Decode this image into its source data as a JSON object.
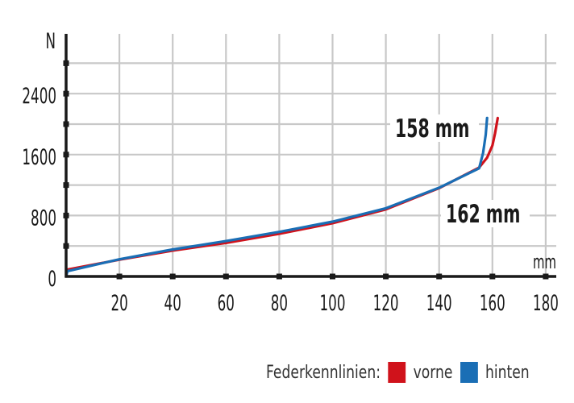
{
  "chart_data": {
    "type": "line",
    "title": "",
    "xlabel": "mm",
    "ylabel": "N",
    "xlim": [
      0,
      180
    ],
    "ylim": [
      0,
      2800
    ],
    "x_ticks": [
      20,
      40,
      60,
      80,
      100,
      120,
      140,
      160,
      180
    ],
    "y_ticks": [
      0,
      800,
      1600,
      2400
    ],
    "y_minor_ticks": [
      400,
      1200,
      2000,
      2800
    ],
    "grid": true,
    "legend_position": "bottom-right",
    "legend_title": "Federkennlinien:",
    "series": [
      {
        "name": "vorne",
        "color": "#d0121b",
        "x": [
          0,
          0.5,
          20,
          40,
          60,
          80,
          100,
          120,
          140,
          155,
          158,
          160,
          161,
          162
        ],
        "y": [
          0,
          90,
          220,
          340,
          440,
          560,
          700,
          880,
          1160,
          1430,
          1560,
          1720,
          1880,
          2080
        ]
      },
      {
        "name": "hinten",
        "color": "#1a6eb5",
        "x": [
          0,
          0.5,
          20,
          40,
          60,
          80,
          100,
          120,
          140,
          155,
          156.5,
          157.5,
          158
        ],
        "y": [
          0,
          70,
          225,
          355,
          465,
          585,
          720,
          895,
          1165,
          1420,
          1620,
          1860,
          2080
        ]
      }
    ],
    "annotations": [
      {
        "text": "158 mm",
        "x": 158,
        "y": 2000,
        "series": "hinten"
      },
      {
        "text": "162 mm",
        "x": 162,
        "y": 850,
        "series": "vorne"
      }
    ]
  },
  "legend": {
    "title": "Federkennlinien:",
    "items": [
      {
        "label": "vorne",
        "color": "#d0121b"
      },
      {
        "label": "hinten",
        "color": "#1a6eb5"
      }
    ]
  },
  "axes": {
    "x_unit": "mm",
    "y_unit": "N"
  }
}
